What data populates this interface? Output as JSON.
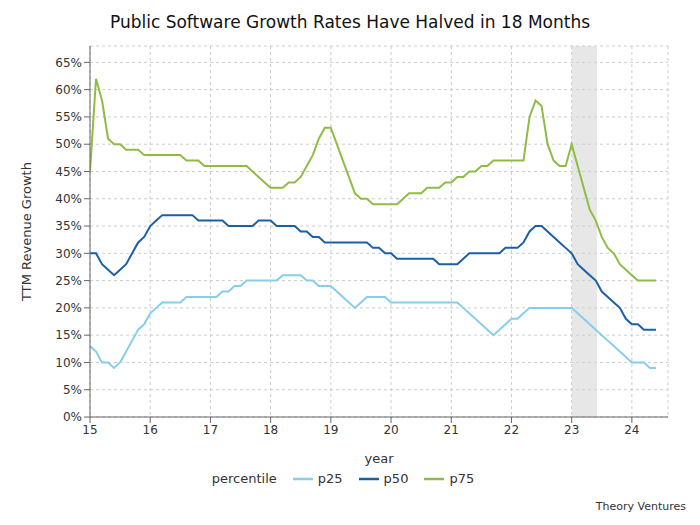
{
  "chart_data": {
    "type": "line",
    "title": "Public Software Growth Rates Have Halved in 18 Months",
    "x_label": "year",
    "y_label": "TTM Revenue Growth",
    "watermark": "Theory Ventures",
    "legend": "bottom",
    "legend_title": "percentile",
    "grid": true,
    "xlim": [
      15,
      24.6
    ],
    "ylim": [
      0.0,
      0.68
    ],
    "xticks": [
      15,
      16,
      17,
      18,
      19,
      20,
      21,
      22,
      23,
      24
    ],
    "yticks": [
      {
        "value": 0.0,
        "label": "0%"
      },
      {
        "value": 0.05,
        "label": "5%"
      },
      {
        "value": 0.1,
        "label": "10%"
      },
      {
        "value": 0.15,
        "label": "15%"
      },
      {
        "value": 0.2,
        "label": "20%"
      },
      {
        "value": 0.25,
        "label": "25%"
      },
      {
        "value": 0.3,
        "label": "30%"
      },
      {
        "value": 0.35,
        "label": "35%"
      },
      {
        "value": 0.4,
        "label": "40%"
      },
      {
        "value": 0.45,
        "label": "45%"
      },
      {
        "value": 0.5,
        "label": "50%"
      },
      {
        "value": 0.55,
        "label": "55%"
      },
      {
        "value": 0.6,
        "label": "60%"
      },
      {
        "value": 0.65,
        "label": "65%"
      }
    ],
    "shade": {
      "x": [
        23.0,
        23.42
      ],
      "color": "#d3d3d3"
    },
    "x": [
      15.0,
      15.1,
      15.2,
      15.3,
      15.4,
      15.5,
      15.6,
      15.7,
      15.8,
      15.9,
      16.0,
      16.1,
      16.2,
      16.3,
      16.4,
      16.5,
      16.6,
      16.7,
      16.8,
      16.9,
      17.0,
      17.1,
      17.2,
      17.3,
      17.4,
      17.5,
      17.6,
      17.7,
      17.8,
      17.9,
      18.0,
      18.1,
      18.2,
      18.3,
      18.4,
      18.5,
      18.6,
      18.7,
      18.8,
      18.9,
      19.0,
      19.1,
      19.2,
      19.3,
      19.4,
      19.5,
      19.6,
      19.7,
      19.8,
      19.9,
      20.0,
      20.1,
      20.2,
      20.3,
      20.4,
      20.5,
      20.6,
      20.7,
      20.8,
      20.9,
      21.0,
      21.1,
      21.2,
      21.3,
      21.4,
      21.5,
      21.6,
      21.7,
      21.8,
      21.9,
      22.0,
      22.1,
      22.2,
      22.3,
      22.4,
      22.5,
      22.6,
      22.7,
      22.8,
      22.9,
      23.0,
      23.1,
      23.2,
      23.3,
      23.4,
      23.5,
      23.6,
      23.7,
      23.8,
      23.9,
      24.0,
      24.1,
      24.2,
      24.3,
      24.4
    ],
    "series": [
      {
        "name": "p25",
        "color": "#87CEEB",
        "values": [
          0.13,
          0.12,
          0.1,
          0.1,
          0.09,
          0.1,
          0.12,
          0.14,
          0.16,
          0.17,
          0.19,
          0.2,
          0.21,
          0.21,
          0.21,
          0.21,
          0.22,
          0.22,
          0.22,
          0.22,
          0.22,
          0.22,
          0.23,
          0.23,
          0.24,
          0.24,
          0.25,
          0.25,
          0.25,
          0.25,
          0.25,
          0.25,
          0.26,
          0.26,
          0.26,
          0.26,
          0.25,
          0.25,
          0.24,
          0.24,
          0.24,
          0.23,
          0.22,
          0.21,
          0.2,
          0.21,
          0.22,
          0.22,
          0.22,
          0.22,
          0.21,
          0.21,
          0.21,
          0.21,
          0.21,
          0.21,
          0.21,
          0.21,
          0.21,
          0.21,
          0.21,
          0.21,
          0.2,
          0.19,
          0.18,
          0.17,
          0.16,
          0.15,
          0.16,
          0.17,
          0.18,
          0.18,
          0.19,
          0.2,
          0.2,
          0.2,
          0.2,
          0.2,
          0.2,
          0.2,
          0.2,
          0.19,
          0.18,
          0.17,
          0.16,
          0.15,
          0.14,
          0.13,
          0.12,
          0.11,
          0.1,
          0.1,
          0.1,
          0.09,
          0.09
        ]
      },
      {
        "name": "p50",
        "color": "#1a5fa8",
        "values": [
          0.3,
          0.3,
          0.28,
          0.27,
          0.26,
          0.27,
          0.28,
          0.3,
          0.32,
          0.33,
          0.35,
          0.36,
          0.37,
          0.37,
          0.37,
          0.37,
          0.37,
          0.37,
          0.36,
          0.36,
          0.36,
          0.36,
          0.36,
          0.35,
          0.35,
          0.35,
          0.35,
          0.35,
          0.36,
          0.36,
          0.36,
          0.35,
          0.35,
          0.35,
          0.35,
          0.34,
          0.34,
          0.33,
          0.33,
          0.32,
          0.32,
          0.32,
          0.32,
          0.32,
          0.32,
          0.32,
          0.32,
          0.31,
          0.31,
          0.3,
          0.3,
          0.29,
          0.29,
          0.29,
          0.29,
          0.29,
          0.29,
          0.29,
          0.28,
          0.28,
          0.28,
          0.28,
          0.29,
          0.3,
          0.3,
          0.3,
          0.3,
          0.3,
          0.3,
          0.31,
          0.31,
          0.31,
          0.32,
          0.34,
          0.35,
          0.35,
          0.34,
          0.33,
          0.32,
          0.31,
          0.3,
          0.28,
          0.27,
          0.26,
          0.25,
          0.23,
          0.22,
          0.21,
          0.2,
          0.18,
          0.17,
          0.17,
          0.16,
          0.16,
          0.16
        ]
      },
      {
        "name": "p75",
        "color": "#8fbc45",
        "values": [
          0.45,
          0.62,
          0.58,
          0.51,
          0.5,
          0.5,
          0.49,
          0.49,
          0.49,
          0.48,
          0.48,
          0.48,
          0.48,
          0.48,
          0.48,
          0.48,
          0.47,
          0.47,
          0.47,
          0.46,
          0.46,
          0.46,
          0.46,
          0.46,
          0.46,
          0.46,
          0.46,
          0.45,
          0.44,
          0.43,
          0.42,
          0.42,
          0.42,
          0.43,
          0.43,
          0.44,
          0.46,
          0.48,
          0.51,
          0.53,
          0.53,
          0.5,
          0.47,
          0.44,
          0.41,
          0.4,
          0.4,
          0.39,
          0.39,
          0.39,
          0.39,
          0.39,
          0.4,
          0.41,
          0.41,
          0.41,
          0.42,
          0.42,
          0.42,
          0.43,
          0.43,
          0.44,
          0.44,
          0.45,
          0.45,
          0.46,
          0.46,
          0.47,
          0.47,
          0.47,
          0.47,
          0.47,
          0.47,
          0.55,
          0.58,
          0.57,
          0.5,
          0.47,
          0.46,
          0.46,
          0.5,
          0.46,
          0.42,
          0.38,
          0.36,
          0.33,
          0.31,
          0.3,
          0.28,
          0.27,
          0.26,
          0.25,
          0.25,
          0.25,
          0.25
        ]
      }
    ]
  }
}
